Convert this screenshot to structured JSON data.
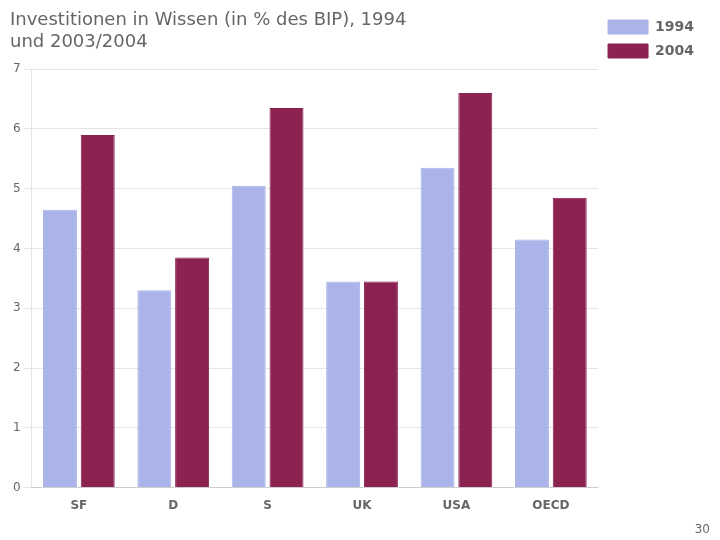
{
  "chart_data": {
    "type": "bar",
    "title": "Investitionen in Wissen (in % des BIP), 1994\nund 2003/2004",
    "categories": [
      "SF",
      "D",
      "S",
      "UK",
      "USA",
      "OECD"
    ],
    "series": [
      {
        "name": "1994",
        "color": "#aab4e8",
        "values": [
          4.65,
          3.3,
          5.05,
          3.45,
          5.35,
          4.15
        ]
      },
      {
        "name": "2004",
        "color": "#8b2252",
        "values": [
          5.9,
          3.85,
          6.35,
          3.45,
          6.6,
          4.85
        ]
      }
    ],
    "ylim": [
      0,
      7
    ],
    "yticks": [
      0,
      1,
      2,
      3,
      4,
      5,
      6,
      7
    ],
    "grid": true,
    "legend": "right",
    "annotations": [
      "30"
    ]
  }
}
